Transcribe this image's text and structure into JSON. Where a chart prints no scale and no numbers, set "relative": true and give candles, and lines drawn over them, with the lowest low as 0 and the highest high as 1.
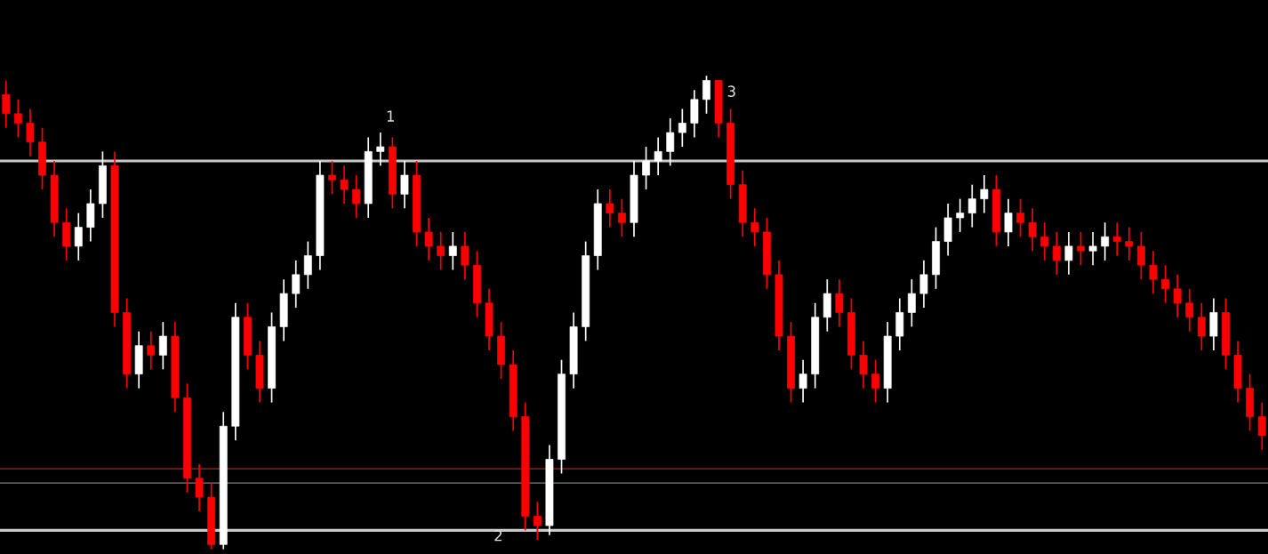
{
  "chart_data": {
    "type": "candlestick",
    "relative": true,
    "grid": false,
    "categories": [
      null,
      null,
      null,
      null,
      null,
      null,
      null,
      null,
      null,
      null,
      null,
      null,
      null,
      null,
      null,
      null,
      null,
      null,
      null,
      null,
      null,
      null,
      null,
      null,
      null,
      null,
      null,
      null,
      null,
      null,
      null,
      null,
      null,
      null,
      null,
      null,
      null,
      null,
      null,
      null,
      null,
      null,
      null,
      null,
      null,
      null,
      null,
      null,
      null,
      null,
      null,
      null,
      null,
      null,
      null,
      null,
      null,
      null,
      null,
      null,
      null,
      null,
      null,
      null,
      null,
      null,
      null,
      null,
      null,
      null,
      null,
      null,
      null,
      null,
      null,
      null,
      null,
      null,
      null,
      null,
      null,
      null,
      null,
      null,
      null,
      null,
      null,
      null,
      null,
      null,
      null,
      null,
      null,
      null,
      null,
      null,
      null,
      null,
      null,
      null,
      null,
      null,
      null,
      null,
      null
    ],
    "ohlc": [
      [
        0.96,
        0.99,
        0.89,
        0.92
      ],
      [
        0.92,
        0.95,
        0.87,
        0.9
      ],
      [
        0.9,
        0.93,
        0.83,
        0.86
      ],
      [
        0.86,
        0.89,
        0.76,
        0.79
      ],
      [
        0.79,
        0.82,
        0.66,
        0.69
      ],
      [
        0.69,
        0.72,
        0.61,
        0.64
      ],
      [
        0.64,
        0.71,
        0.61,
        0.68
      ],
      [
        0.68,
        0.76,
        0.65,
        0.73
      ],
      [
        0.73,
        0.84,
        0.7,
        0.81
      ],
      [
        0.81,
        0.84,
        0.47,
        0.5
      ],
      [
        0.5,
        0.53,
        0.34,
        0.37
      ],
      [
        0.37,
        0.46,
        0.34,
        0.43
      ],
      [
        0.43,
        0.46,
        0.38,
        0.41
      ],
      [
        0.41,
        0.48,
        0.38,
        0.45
      ],
      [
        0.45,
        0.48,
        0.29,
        0.32
      ],
      [
        0.32,
        0.35,
        0.12,
        0.15
      ],
      [
        0.15,
        0.18,
        0.08,
        0.11
      ],
      [
        0.11,
        0.14,
        0.0,
        0.01
      ],
      [
        0.01,
        0.29,
        0.0,
        0.26
      ],
      [
        0.26,
        0.52,
        0.23,
        0.49
      ],
      [
        0.49,
        0.52,
        0.38,
        0.41
      ],
      [
        0.41,
        0.44,
        0.31,
        0.34
      ],
      [
        0.34,
        0.5,
        0.31,
        0.47
      ],
      [
        0.47,
        0.57,
        0.44,
        0.54
      ],
      [
        0.54,
        0.61,
        0.51,
        0.58
      ],
      [
        0.58,
        0.65,
        0.55,
        0.62
      ],
      [
        0.62,
        0.82,
        0.59,
        0.79
      ],
      [
        0.79,
        0.82,
        0.75,
        0.78
      ],
      [
        0.78,
        0.81,
        0.73,
        0.76
      ],
      [
        0.76,
        0.79,
        0.7,
        0.73
      ],
      [
        0.73,
        0.87,
        0.7,
        0.84
      ],
      [
        0.84,
        0.88,
        0.81,
        0.85
      ],
      [
        0.85,
        0.87,
        0.72,
        0.75
      ],
      [
        0.75,
        0.82,
        0.72,
        0.79
      ],
      [
        0.79,
        0.82,
        0.64,
        0.67
      ],
      [
        0.67,
        0.7,
        0.61,
        0.64
      ],
      [
        0.64,
        0.67,
        0.59,
        0.62
      ],
      [
        0.62,
        0.67,
        0.59,
        0.64
      ],
      [
        0.64,
        0.67,
        0.57,
        0.6
      ],
      [
        0.6,
        0.63,
        0.49,
        0.52
      ],
      [
        0.52,
        0.55,
        0.42,
        0.45
      ],
      [
        0.45,
        0.48,
        0.36,
        0.39
      ],
      [
        0.39,
        0.42,
        0.25,
        0.28
      ],
      [
        0.28,
        0.31,
        0.04,
        0.07
      ],
      [
        0.07,
        0.1,
        0.02,
        0.05
      ],
      [
        0.05,
        0.22,
        0.03,
        0.19
      ],
      [
        0.19,
        0.4,
        0.16,
        0.37
      ],
      [
        0.37,
        0.5,
        0.34,
        0.47
      ],
      [
        0.47,
        0.65,
        0.44,
        0.62
      ],
      [
        0.62,
        0.76,
        0.59,
        0.73
      ],
      [
        0.73,
        0.76,
        0.68,
        0.71
      ],
      [
        0.71,
        0.74,
        0.66,
        0.69
      ],
      [
        0.69,
        0.82,
        0.66,
        0.79
      ],
      [
        0.79,
        0.85,
        0.76,
        0.82
      ],
      [
        0.82,
        0.87,
        0.79,
        0.84
      ],
      [
        0.84,
        0.91,
        0.81,
        0.88
      ],
      [
        0.88,
        0.93,
        0.85,
        0.9
      ],
      [
        0.9,
        0.97,
        0.87,
        0.95
      ],
      [
        0.95,
        1.0,
        0.92,
        0.99
      ],
      [
        0.99,
        0.99,
        0.87,
        0.9
      ],
      [
        0.9,
        0.93,
        0.74,
        0.77
      ],
      [
        0.77,
        0.8,
        0.66,
        0.69
      ],
      [
        0.69,
        0.72,
        0.64,
        0.67
      ],
      [
        0.67,
        0.7,
        0.55,
        0.58
      ],
      [
        0.58,
        0.61,
        0.42,
        0.45
      ],
      [
        0.45,
        0.48,
        0.31,
        0.34
      ],
      [
        0.34,
        0.4,
        0.31,
        0.37
      ],
      [
        0.37,
        0.52,
        0.34,
        0.49
      ],
      [
        0.49,
        0.57,
        0.46,
        0.54
      ],
      [
        0.54,
        0.57,
        0.47,
        0.5
      ],
      [
        0.5,
        0.53,
        0.38,
        0.41
      ],
      [
        0.41,
        0.44,
        0.34,
        0.37
      ],
      [
        0.37,
        0.4,
        0.31,
        0.34
      ],
      [
        0.34,
        0.48,
        0.31,
        0.45
      ],
      [
        0.45,
        0.53,
        0.42,
        0.5
      ],
      [
        0.5,
        0.57,
        0.47,
        0.54
      ],
      [
        0.54,
        0.61,
        0.51,
        0.58
      ],
      [
        0.58,
        0.68,
        0.55,
        0.65
      ],
      [
        0.65,
        0.73,
        0.62,
        0.7
      ],
      [
        0.7,
        0.74,
        0.67,
        0.71
      ],
      [
        0.71,
        0.77,
        0.68,
        0.74
      ],
      [
        0.74,
        0.79,
        0.71,
        0.76
      ],
      [
        0.76,
        0.79,
        0.64,
        0.67
      ],
      [
        0.67,
        0.74,
        0.64,
        0.71
      ],
      [
        0.71,
        0.74,
        0.66,
        0.69
      ],
      [
        0.69,
        0.72,
        0.63,
        0.66
      ],
      [
        0.66,
        0.69,
        0.61,
        0.64
      ],
      [
        0.64,
        0.67,
        0.58,
        0.61
      ],
      [
        0.61,
        0.67,
        0.58,
        0.64
      ],
      [
        0.64,
        0.67,
        0.6,
        0.63
      ],
      [
        0.63,
        0.67,
        0.6,
        0.64
      ],
      [
        0.64,
        0.69,
        0.61,
        0.66
      ],
      [
        0.66,
        0.69,
        0.62,
        0.65
      ],
      [
        0.65,
        0.68,
        0.61,
        0.64
      ],
      [
        0.64,
        0.67,
        0.57,
        0.6
      ],
      [
        0.6,
        0.63,
        0.54,
        0.57
      ],
      [
        0.57,
        0.6,
        0.52,
        0.55
      ],
      [
        0.55,
        0.58,
        0.49,
        0.52
      ],
      [
        0.52,
        0.55,
        0.46,
        0.49
      ],
      [
        0.49,
        0.52,
        0.42,
        0.45
      ],
      [
        0.45,
        0.53,
        0.42,
        0.5
      ],
      [
        0.5,
        0.53,
        0.38,
        0.41
      ],
      [
        0.41,
        0.44,
        0.31,
        0.34
      ],
      [
        0.34,
        0.37,
        0.25,
        0.28
      ],
      [
        0.28,
        0.31,
        0.21,
        0.24
      ]
    ],
    "colors": [
      "#ff0000",
      "#ff0000",
      "#ff0000",
      "#ff0000",
      "#ff0000",
      "#ff0000",
      "#ffffff",
      "#ffffff",
      "#ffffff",
      "#ff0000",
      "#ff0000",
      "#ffffff",
      "#ff0000",
      "#ffffff",
      "#ff0000",
      "#ff0000",
      "#ff0000",
      "#ff0000",
      "#ffffff",
      "#ffffff",
      "#ff0000",
      "#ff0000",
      "#ffffff",
      "#ffffff",
      "#ffffff",
      "#ffffff",
      "#ffffff",
      "#ff0000",
      "#ff0000",
      "#ff0000",
      "#ffffff",
      "#ffffff",
      "#ff0000",
      "#ffffff",
      "#ff0000",
      "#ff0000",
      "#ff0000",
      "#ffffff",
      "#ff0000",
      "#ff0000",
      "#ff0000",
      "#ff0000",
      "#ff0000",
      "#ff0000",
      "#ff0000",
      "#ffffff",
      "#ffffff",
      "#ffffff",
      "#ffffff",
      "#ffffff",
      "#ff0000",
      "#ff0000",
      "#ffffff",
      "#ffffff",
      "#ffffff",
      "#ffffff",
      "#ffffff",
      "#ffffff",
      "#ffffff",
      "#ff0000",
      "#ff0000",
      "#ff0000",
      "#ff0000",
      "#ff0000",
      "#ff0000",
      "#ff0000",
      "#ffffff",
      "#ffffff",
      "#ffffff",
      "#ff0000",
      "#ff0000",
      "#ff0000",
      "#ff0000",
      "#ffffff",
      "#ffffff",
      "#ffffff",
      "#ffffff",
      "#ffffff",
      "#ffffff",
      "#ffffff",
      "#ffffff",
      "#ffffff",
      "#ff0000",
      "#ffffff",
      "#ff0000",
      "#ff0000",
      "#ff0000",
      "#ff0000",
      "#ffffff",
      "#ff0000",
      "#ffffff",
      "#ffffff",
      "#ff0000",
      "#ff0000",
      "#ff0000",
      "#ff0000",
      "#ff0000",
      "#ff0000",
      "#ff0000",
      "#ff0000",
      "#ffffff",
      "#ff0000",
      "#ff0000",
      "#ff0000",
      "#ff0000"
    ],
    "ref_lines": [
      {
        "axis": "y",
        "value": 0.82,
        "color": "#c8c8c8"
      },
      {
        "axis": "y",
        "value": 0.17,
        "color": "#b22222"
      },
      {
        "axis": "y",
        "value": 0.14,
        "color": "#808080"
      },
      {
        "axis": "y",
        "value": 0.04,
        "color": "#c8c8c8"
      }
    ],
    "annotations": [
      "1",
      "2",
      "3"
    ]
  }
}
